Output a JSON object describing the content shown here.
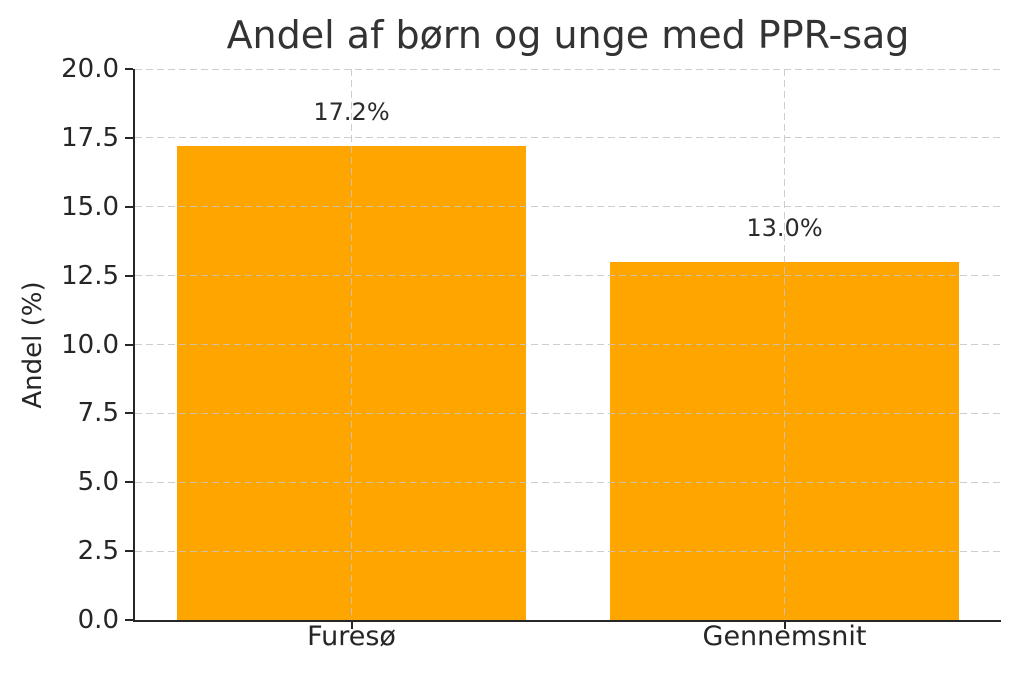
{
  "chart_data": {
    "type": "bar",
    "title": "Andel af børn og unge med PPR-sag",
    "xlabel": "",
    "ylabel": "Andel (%)",
    "categories": [
      "Furesø",
      "Gennemsnit"
    ],
    "values": [
      17.2,
      13.0
    ],
    "bar_labels": [
      "17.2%",
      "13.0%"
    ],
    "ylim": [
      0,
      20
    ],
    "yticks": [
      0.0,
      2.5,
      5.0,
      7.5,
      10.0,
      12.5,
      15.0,
      17.5,
      20.0
    ],
    "ytick_labels": [
      "0.0",
      "2.5",
      "5.0",
      "7.5",
      "10.0",
      "12.5",
      "15.0",
      "17.5",
      "20.0"
    ],
    "grid": "dashed horizontal and vertical gridlines, drawn over bars",
    "legend": "none",
    "bar_color": "#FFA500",
    "text_color": "#262626",
    "title_color": "#333333",
    "grid_color": "#c6c6c6",
    "spine_color": "#262626"
  }
}
